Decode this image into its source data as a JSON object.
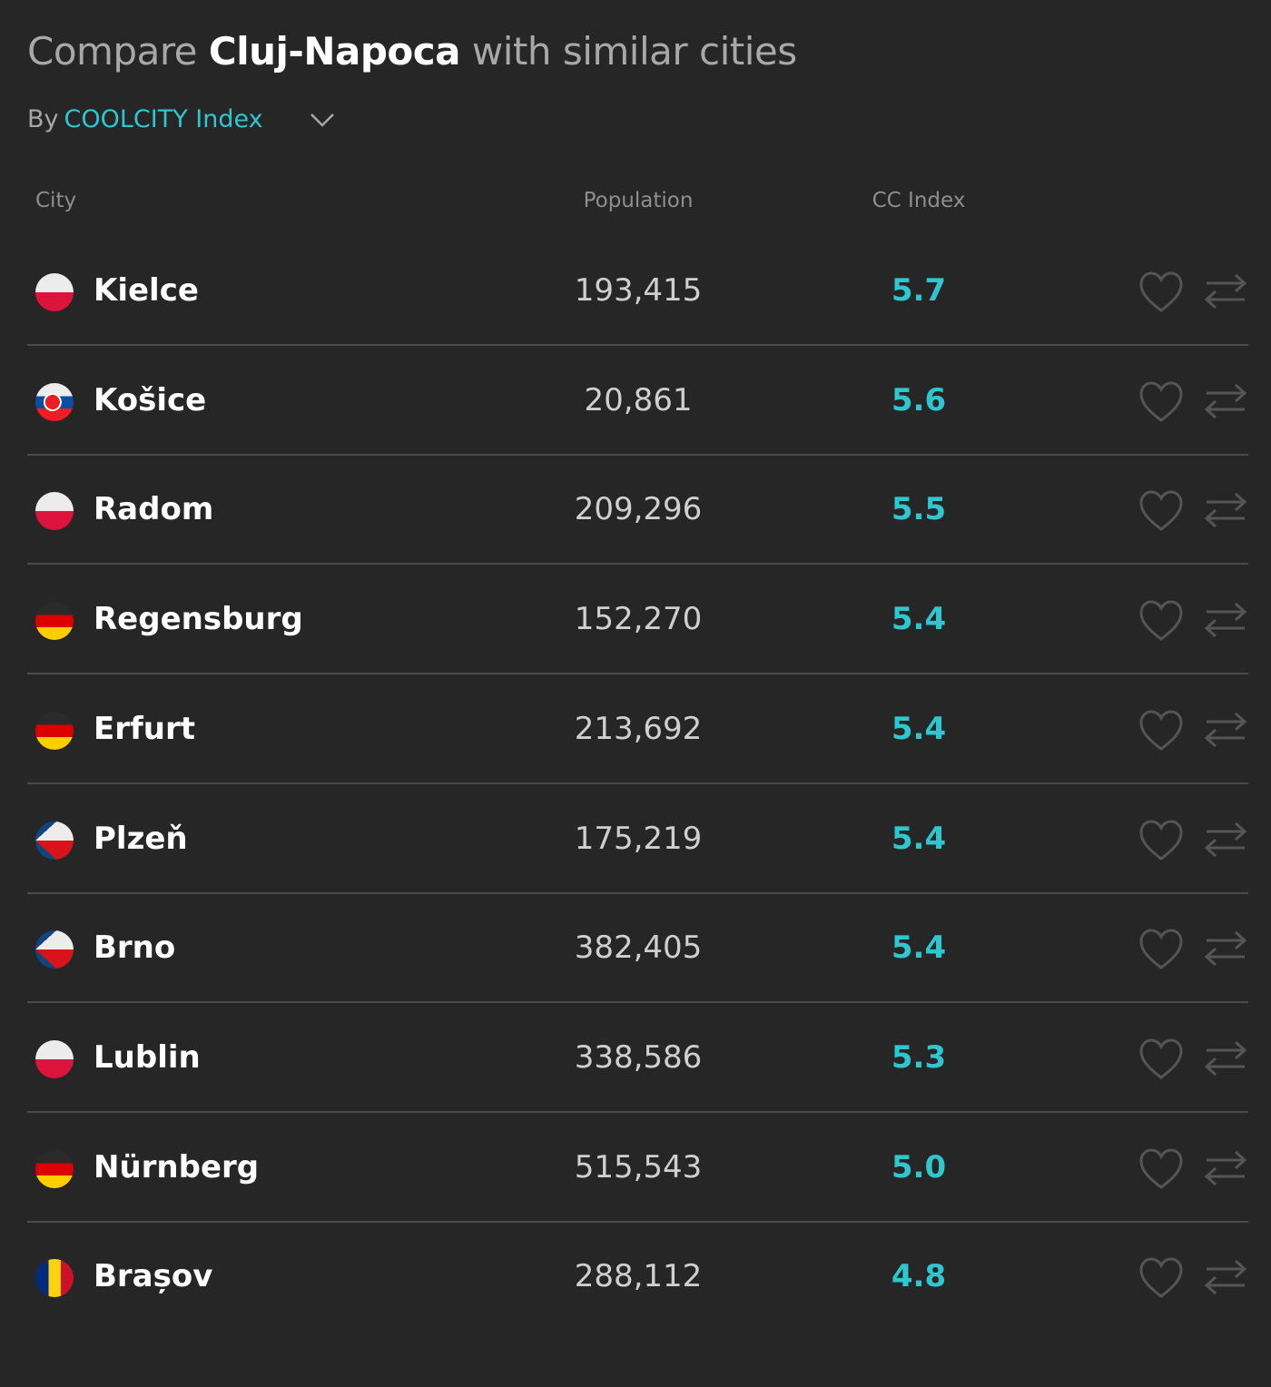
{
  "header": {
    "title_prefix": "Compare",
    "title_city": "Cluj-Napoca",
    "title_suffix": "with similar cities"
  },
  "sort": {
    "label": "By",
    "option": "COOLCITY Index"
  },
  "table": {
    "columns": [
      "City",
      "Population",
      "CC Index"
    ],
    "rows": [
      [
        "Kielce",
        "193,415",
        "5.7"
      ],
      [
        "Košice",
        "20,861",
        "5.6"
      ],
      [
        "Radom",
        "209,296",
        "5.5"
      ],
      [
        "Regensburg",
        "152,270",
        "5.4"
      ],
      [
        "Erfurt",
        "213,692",
        "5.4"
      ],
      [
        "Plzeň",
        "175,219",
        "5.4"
      ],
      [
        "Brno",
        "382,405",
        "5.4"
      ],
      [
        "Lublin",
        "338,586",
        "5.3"
      ],
      [
        "Nürnberg",
        "515,543",
        "5.0"
      ],
      [
        "Brașov",
        "288,112",
        "4.8"
      ]
    ]
  }
}
